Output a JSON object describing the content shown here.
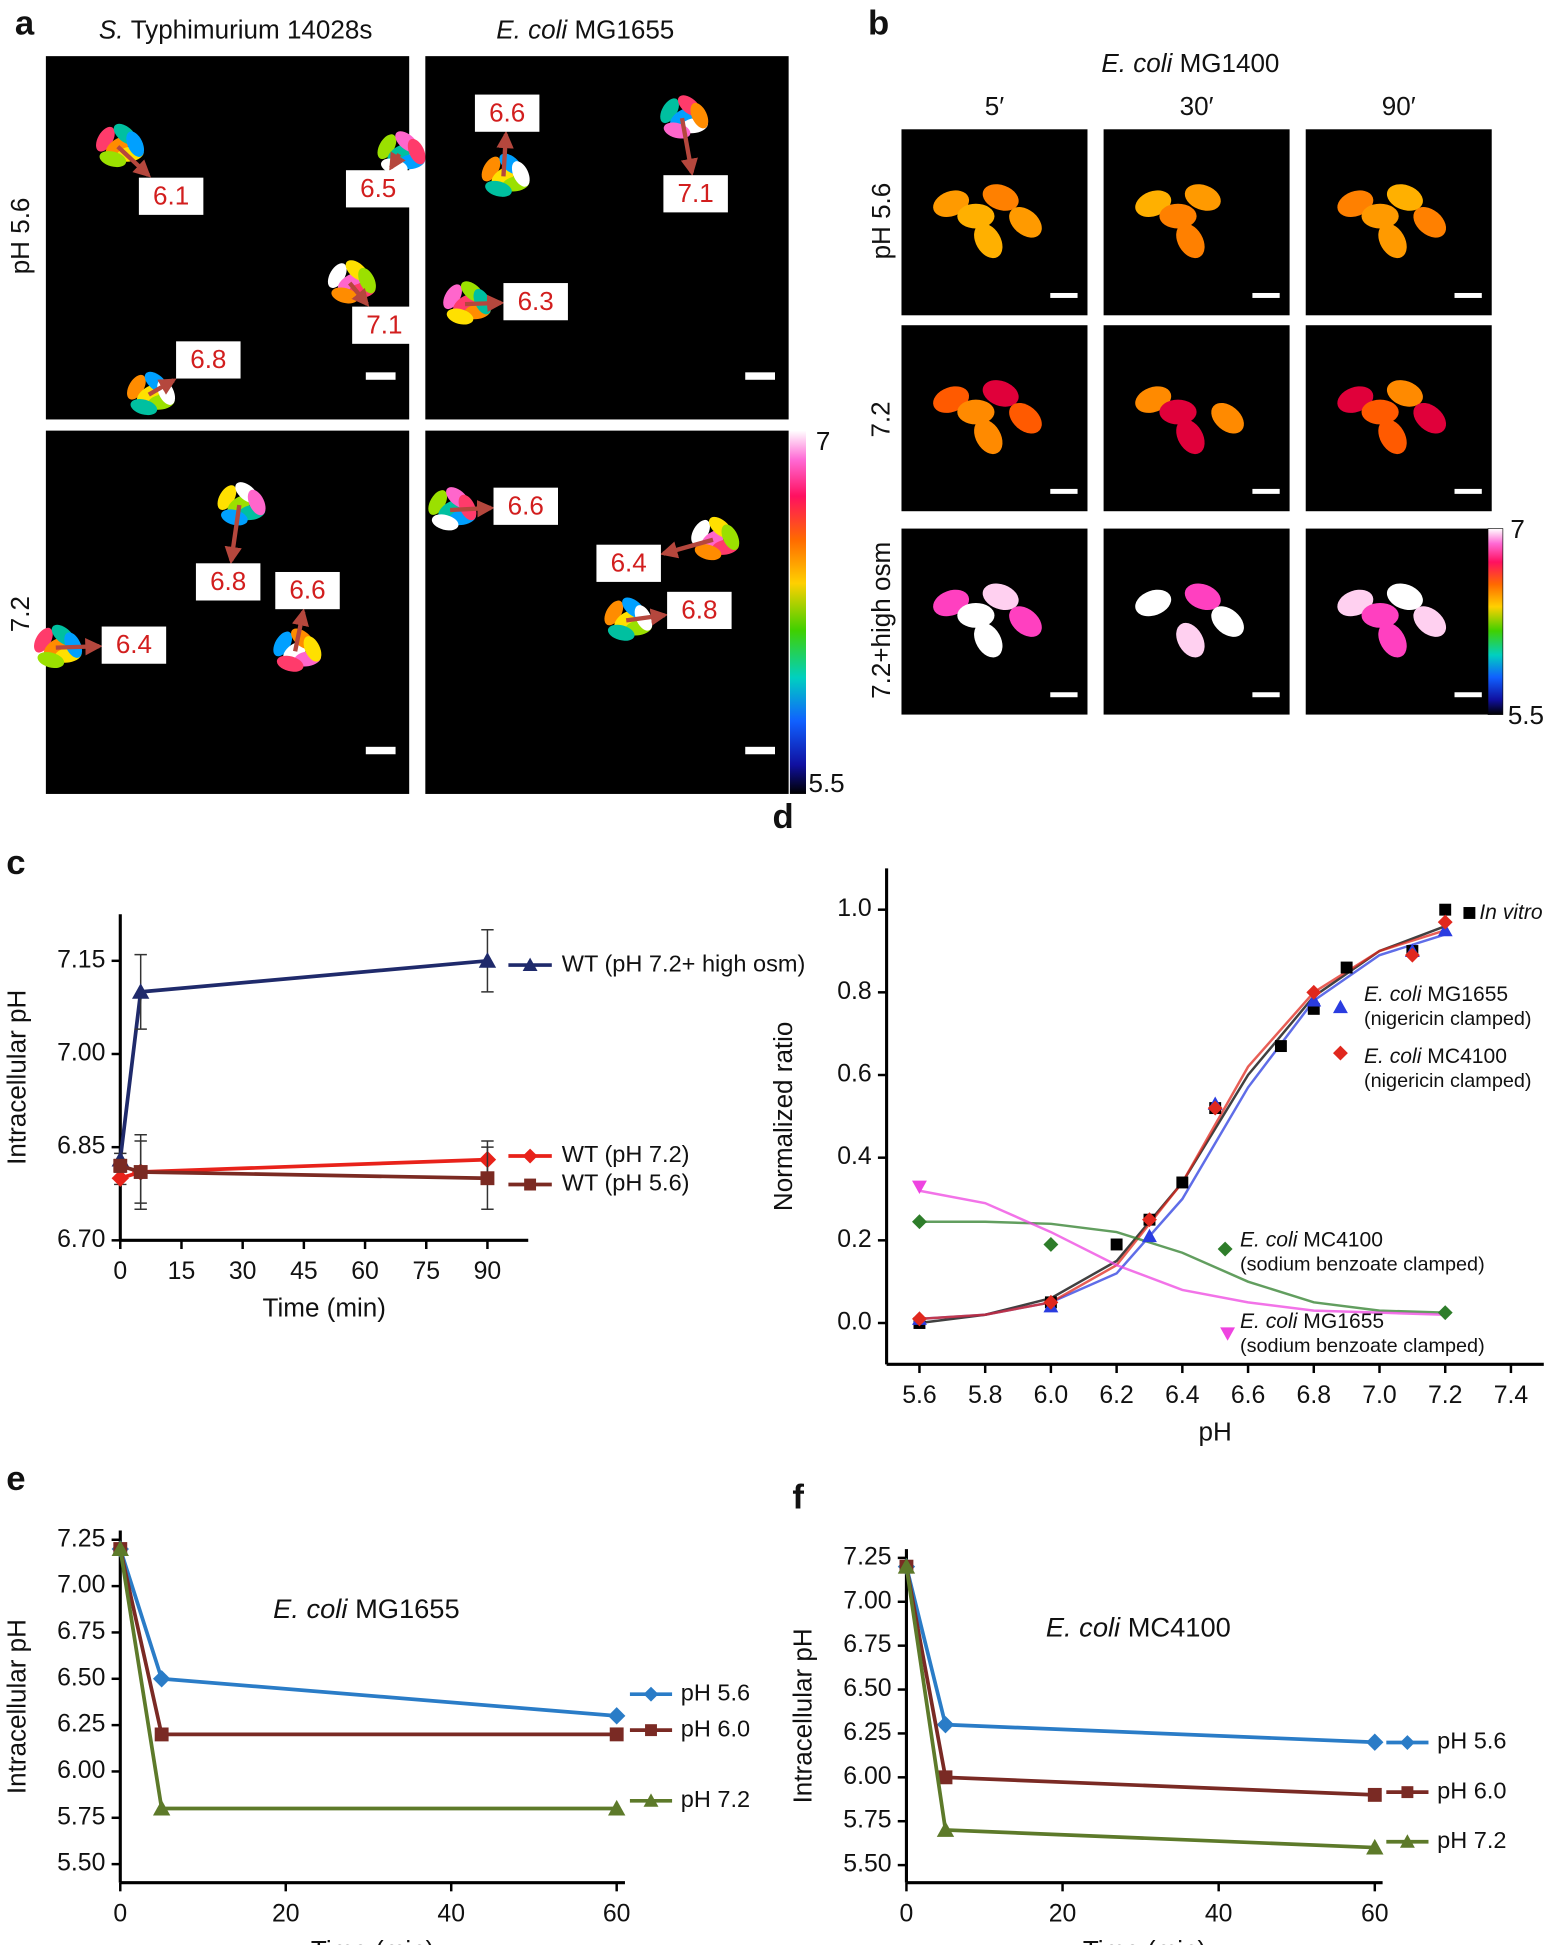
{
  "panels": {
    "a": {
      "label": "a",
      "columns": [
        {
          "italic": "S.",
          "rest": "Typhimurium 14028s"
        },
        {
          "italic": "E. coli",
          "rest": "MG1655"
        }
      ],
      "rows": [
        "pH 5.6",
        "7.2"
      ],
      "images": [
        [
          "6.1",
          "6.5",
          "7.1",
          "6.8"
        ],
        [
          "6.6",
          "7.1",
          "6.3"
        ],
        [
          "6.8",
          "6.6",
          "6.4"
        ],
        [
          "6.6",
          "6.4",
          "6.8"
        ]
      ],
      "colorbar": {
        "max": "7",
        "min": "5.5"
      }
    },
    "b": {
      "label": "b",
      "title": {
        "italic": "E. coli",
        "rest": "MG1400"
      },
      "columns": [
        "5′",
        "30′",
        "90′"
      ],
      "rows": [
        "pH 5.6",
        "7.2",
        "7.2+high osm"
      ],
      "colorbar": {
        "max": "7",
        "min": "5.5"
      }
    }
  },
  "chart_data": [
    {
      "type": "line",
      "label": "c",
      "xlabel": "Time (min)",
      "ylabel": "Intracellular pH",
      "x": [
        0,
        5,
        90
      ],
      "xlim": [
        0,
        100
      ],
      "xticks": [
        0,
        15,
        30,
        45,
        60,
        75,
        90
      ],
      "ylim": [
        6.7,
        7.225
      ],
      "yticks": [
        {
          "value": 6.7,
          "label": "6.70"
        },
        6.85,
        {
          "value": 7.0,
          "label": "7.00"
        },
        7.15
      ],
      "series": [
        {
          "name": "WT (pH 7.2+ high osm)",
          "color": "#1f2a6b",
          "marker": "triangle",
          "values": [
            6.83,
            7.1,
            7.15
          ],
          "errors": [
            0.01,
            0.06,
            0.05
          ]
        },
        {
          "name": "WT (pH 7.2)",
          "color": "#e8221a",
          "marker": "diamond",
          "values": [
            6.8,
            6.81,
            6.83
          ],
          "errors": [
            0.01,
            0.06,
            0.03
          ]
        },
        {
          "name": "WT (pH 5.6)",
          "color": "#7b2a22",
          "marker": "square",
          "values": [
            6.82,
            6.81,
            6.8
          ],
          "errors": [
            0.01,
            0.05,
            0.05
          ]
        }
      ]
    },
    {
      "type": "scatter",
      "label": "d",
      "xlabel": "pH",
      "ylabel": "Normalized ratio",
      "xlim": [
        5.5,
        7.5
      ],
      "xticks": [
        5.6,
        5.8,
        {
          "value": 6.0,
          "label": "6.0"
        },
        6.2,
        6.4,
        6.6,
        6.8,
        {
          "value": 7.0,
          "label": "7.0"
        },
        7.2,
        7.4
      ],
      "ylim": [
        -0.1,
        1.1
      ],
      "yticks": [
        {
          "value": 0.0,
          "label": "0.0"
        },
        0.2,
        0.4,
        0.6,
        0.8,
        {
          "value": 1.0,
          "label": "1.0"
        }
      ],
      "fit_x": [
        5.6,
        5.8,
        6.0,
        6.2,
        6.4,
        6.6,
        6.8,
        7.0,
        7.2
      ],
      "series": [
        {
          "name_italic": "In vitro",
          "color": "#000000",
          "marker": "square",
          "x": [
            5.6,
            6.0,
            6.2,
            6.3,
            6.4,
            6.5,
            6.7,
            6.8,
            6.9,
            7.1,
            7.2
          ],
          "values": [
            0.0,
            0.05,
            0.19,
            0.25,
            0.34,
            0.52,
            0.67,
            0.76,
            0.86,
            0.9,
            1.0
          ],
          "fit": [
            0.0,
            0.02,
            0.06,
            0.15,
            0.34,
            0.6,
            0.79,
            0.9,
            0.96
          ]
        },
        {
          "name_italic": "E. coli",
          "name": "MG1655",
          "note": "(nigericin clamped)",
          "color": "#2a3ce0",
          "marker": "triangle",
          "x": [
            5.6,
            6.0,
            6.3,
            6.5,
            6.8,
            7.1,
            7.2
          ],
          "values": [
            0.01,
            0.04,
            0.21,
            0.53,
            0.78,
            0.9,
            0.95
          ],
          "fit": [
            0.01,
            0.02,
            0.05,
            0.12,
            0.3,
            0.57,
            0.78,
            0.89,
            0.94
          ]
        },
        {
          "name_italic": "E. coli",
          "name": "MC4100",
          "note": "(nigericin clamped)",
          "color": "#e0281e",
          "marker": "diamond",
          "x": [
            5.6,
            6.0,
            6.3,
            6.5,
            6.8,
            7.1,
            7.2
          ],
          "values": [
            0.01,
            0.05,
            0.25,
            0.52,
            0.8,
            0.89,
            0.97
          ],
          "fit": [
            0.01,
            0.02,
            0.05,
            0.14,
            0.34,
            0.62,
            0.8,
            0.9,
            0.95
          ]
        },
        {
          "name_italic": "E. coli",
          "name": "MC4100",
          "note": "(sodium benzoate clamped)",
          "color": "#2e7d2a",
          "marker": "diamond",
          "x": [
            5.6,
            6.0,
            7.2
          ],
          "values": [
            0.245,
            0.19,
            0.025
          ],
          "fit": [
            0.245,
            0.245,
            0.24,
            0.22,
            0.17,
            0.1,
            0.05,
            0.03,
            0.025
          ]
        },
        {
          "name_italic": "E. coli",
          "name": "MG1655",
          "note": "(sodium benzoate clamped)",
          "color": "#ee44e0",
          "marker": "down-triangle",
          "x": [
            5.6
          ],
          "values": [
            0.33
          ],
          "fit": [
            0.32,
            0.29,
            0.22,
            0.14,
            0.08,
            0.05,
            0.03,
            0.025,
            0.02
          ]
        }
      ]
    },
    {
      "type": "line",
      "label": "e",
      "title_italic": "E. coli",
      "title": "MG1655",
      "xlabel": "Time (min)",
      "ylabel": "Intracellular pH",
      "x": [
        0,
        5,
        60
      ],
      "xlim": [
        0,
        61
      ],
      "xticks": [
        0,
        20,
        40,
        60
      ],
      "ylim": [
        5.4,
        7.3
      ],
      "yticks": [
        {
          "value": 5.5,
          "label": "5.50"
        },
        5.75,
        {
          "value": 6.0,
          "label": "6.00"
        },
        6.25,
        {
          "value": 6.5,
          "label": "6.50"
        },
        6.75,
        {
          "value": 7.0,
          "label": "7.00"
        },
        7.25
      ],
      "series": [
        {
          "name": "pH 5.6",
          "color": "#2a7cc7",
          "marker": "diamond",
          "values": [
            7.2,
            6.5,
            6.3
          ]
        },
        {
          "name": "pH 6.0",
          "color": "#7a2a24",
          "marker": "square",
          "values": [
            7.2,
            6.2,
            6.2
          ]
        },
        {
          "name": "pH 7.2",
          "color": "#5d7a2a",
          "marker": "triangle",
          "values": [
            7.2,
            5.8,
            5.8
          ]
        }
      ]
    },
    {
      "type": "line",
      "label": "f",
      "title_italic": "E. coli",
      "title": "MC4100",
      "xlabel": "Time (min)",
      "ylabel": "Intracellular pH",
      "x": [
        0,
        5,
        60
      ],
      "xlim": [
        0,
        61
      ],
      "xticks": [
        0,
        20,
        40,
        60
      ],
      "ylim": [
        5.4,
        7.3
      ],
      "yticks": [
        {
          "value": 5.5,
          "label": "5.50"
        },
        5.75,
        {
          "value": 6.0,
          "label": "6.00"
        },
        6.25,
        {
          "value": 6.5,
          "label": "6.50"
        },
        6.75,
        {
          "value": 7.0,
          "label": "7.00"
        },
        7.25
      ],
      "series": [
        {
          "name": "pH 5.6",
          "color": "#2a7cc7",
          "marker": "diamond",
          "values": [
            7.2,
            6.3,
            6.2
          ]
        },
        {
          "name": "pH 6.0",
          "color": "#7a2a24",
          "marker": "square",
          "values": [
            7.2,
            6.0,
            5.9
          ]
        },
        {
          "name": "pH 7.2",
          "color": "#5d7a2a",
          "marker": "triangle",
          "values": [
            7.2,
            5.7,
            5.6
          ]
        }
      ]
    }
  ]
}
